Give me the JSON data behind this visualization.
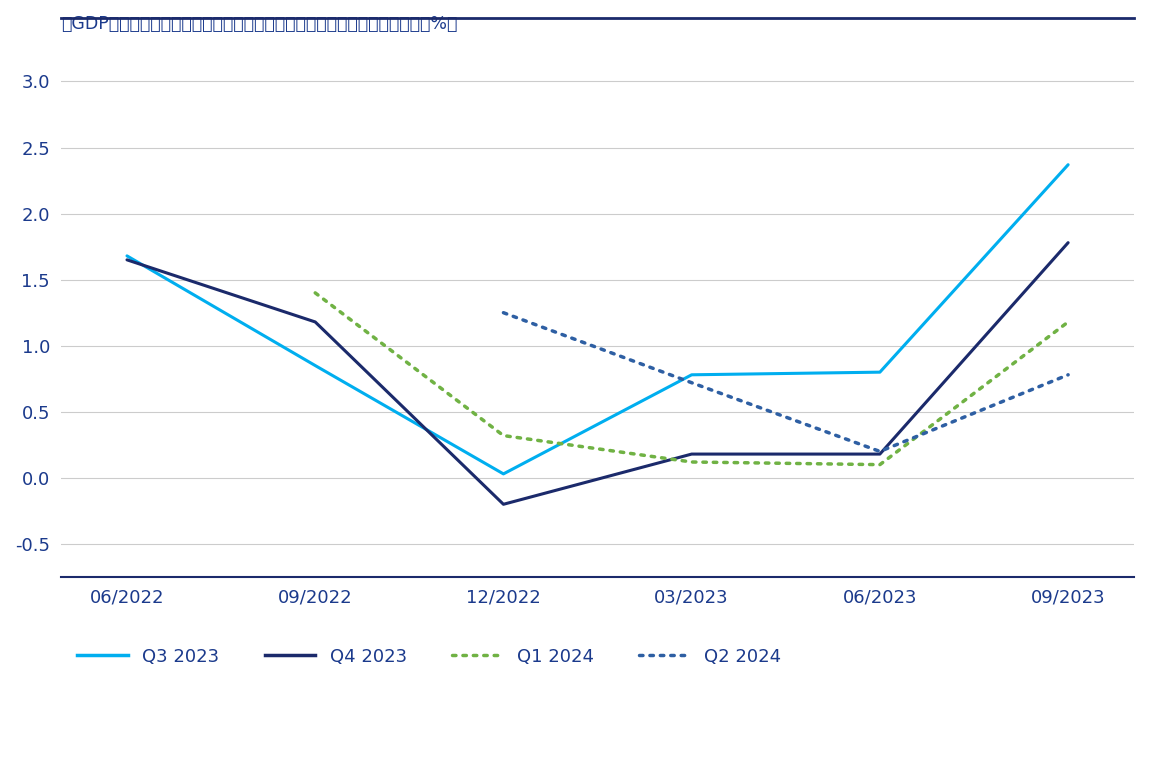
{
  "title": "米GDP成長率のコンセンサス予想（前四半期比、季節調整済み年率換算値、%）",
  "x_labels": [
    "06/2022",
    "09/2022",
    "12/2022",
    "03/2023",
    "06/2023",
    "09/2023"
  ],
  "x_positions": [
    0,
    1,
    2,
    3,
    4,
    5
  ],
  "series": {
    "Q3 2023": {
      "color": "#00AEEF",
      "linestyle": "solid",
      "linewidth": 2.2,
      "x": [
        0,
        1,
        2,
        3,
        4,
        5
      ],
      "values": [
        1.68,
        0.85,
        0.03,
        0.78,
        0.8,
        2.37
      ]
    },
    "Q4 2023": {
      "color": "#1B2A6B",
      "linestyle": "solid",
      "linewidth": 2.2,
      "x": [
        0,
        1,
        2,
        3,
        4,
        5
      ],
      "values": [
        1.65,
        1.18,
        -0.2,
        0.18,
        0.18,
        1.78
      ]
    },
    "Q1 2024": {
      "color": "#70B244",
      "linestyle": "dotted",
      "linewidth": 2.5,
      "x": [
        1,
        2,
        3,
        4,
        5
      ],
      "values": [
        1.4,
        0.32,
        0.12,
        0.1,
        1.18
      ]
    },
    "Q2 2024": {
      "color": "#2E5FA3",
      "linestyle": "dotted",
      "linewidth": 2.5,
      "x": [
        2,
        3,
        4,
        5
      ],
      "values": [
        1.25,
        0.72,
        0.2,
        0.78
      ]
    }
  },
  "ylim": [
    -0.75,
    3.25
  ],
  "yticks": [
    -0.5,
    0.0,
    0.5,
    1.0,
    1.5,
    2.0,
    2.5,
    3.0
  ],
  "background_color": "#ffffff",
  "title_color": "#1B3A8C",
  "tick_color": "#1B3A8C",
  "grid_color": "#cccccc",
  "line_color": "#1B2A6B"
}
